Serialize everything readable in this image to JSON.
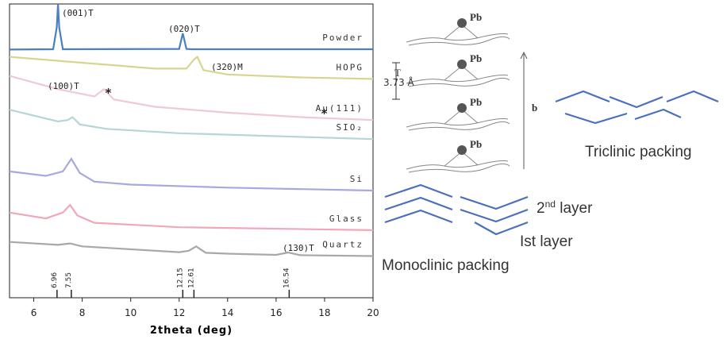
{
  "chart_data": {
    "type": "line",
    "xlabel": "2theta (deg)",
    "xlim": [
      5,
      20
    ],
    "xticks": [
      6,
      8,
      10,
      12,
      14,
      16,
      18,
      20
    ],
    "ylim": [
      0,
      100
    ],
    "series": [
      {
        "name": "Powder",
        "color": "#4a7fc0",
        "x": [
          5,
          6.8,
          6.95,
          7.0,
          7.05,
          7.2,
          12.0,
          12.15,
          12.3,
          12.5,
          20
        ],
        "values": [
          84.5,
          84.6,
          92,
          100,
          92,
          84.6,
          84.7,
          90,
          84.7,
          84.6,
          84.6
        ]
      },
      {
        "name": "HOPG",
        "color": "#d6d690",
        "x": [
          5,
          8,
          11,
          12.3,
          12.6,
          12.75,
          13,
          14,
          17,
          20
        ],
        "values": [
          82,
          80,
          78,
          78,
          81,
          82,
          77.5,
          76,
          75,
          74.5
        ]
      },
      {
        "name": "Au(111)",
        "color": "#f0c8d8",
        "x": [
          5,
          7,
          8.5,
          8.9,
          9.3,
          11,
          14,
          17,
          20
        ],
        "values": [
          75.5,
          71,
          68.5,
          71,
          67.5,
          65,
          63,
          61.5,
          60.5
        ]
      },
      {
        "name": "SIO₂",
        "color": "#b4d6d6",
        "x": [
          5,
          7,
          7.4,
          7.6,
          7.9,
          9,
          12,
          16,
          20
        ],
        "values": [
          64,
          60,
          60.5,
          61.5,
          59,
          57.5,
          56,
          55,
          54
        ]
      },
      {
        "name": "Si",
        "color": "#a8a8e0",
        "x": [
          5,
          6.5,
          7.2,
          7.55,
          7.9,
          8.5,
          10,
          14,
          20
        ],
        "values": [
          43,
          41.5,
          43,
          47.3,
          42.5,
          39.5,
          38.5,
          37.5,
          36.5
        ]
      },
      {
        "name": "Glass",
        "color": "#f0a8b8",
        "x": [
          5,
          6.5,
          7.2,
          7.5,
          7.8,
          8.5,
          12,
          20
        ],
        "values": [
          29,
          27,
          29,
          31.6,
          28,
          25.5,
          24,
          23
        ]
      },
      {
        "name": "Quartz",
        "color": "#a8a8a8",
        "x": [
          5,
          7,
          7.5,
          8,
          12,
          12.4,
          12.7,
          13.1,
          14,
          16,
          16.5,
          17,
          20
        ],
        "values": [
          19,
          18,
          18.5,
          17.5,
          15.5,
          16,
          17.5,
          15.3,
          15,
          14.6,
          15.4,
          14.5,
          14.2
        ]
      }
    ],
    "reference_peaks": [
      6.96,
      7.55,
      12.15,
      12.61,
      16.54
    ],
    "annotations": [
      "(001)T",
      "(020)T",
      "(320)M",
      "(100)T",
      "*",
      "*",
      "(130)T"
    ]
  },
  "diagram": {
    "atom_labels": [
      "Pb",
      "Pb",
      "Pb",
      "Pb"
    ],
    "spacing_symbol": "T",
    "spacing": "3.73 Å",
    "axis": "b",
    "triclinic": "Triclinic packing",
    "second_layer": {
      "number": "2",
      "sup": "nd",
      "text": " layer"
    },
    "first_layer": "Ist layer",
    "monoclinic": "Monoclinic packing"
  }
}
